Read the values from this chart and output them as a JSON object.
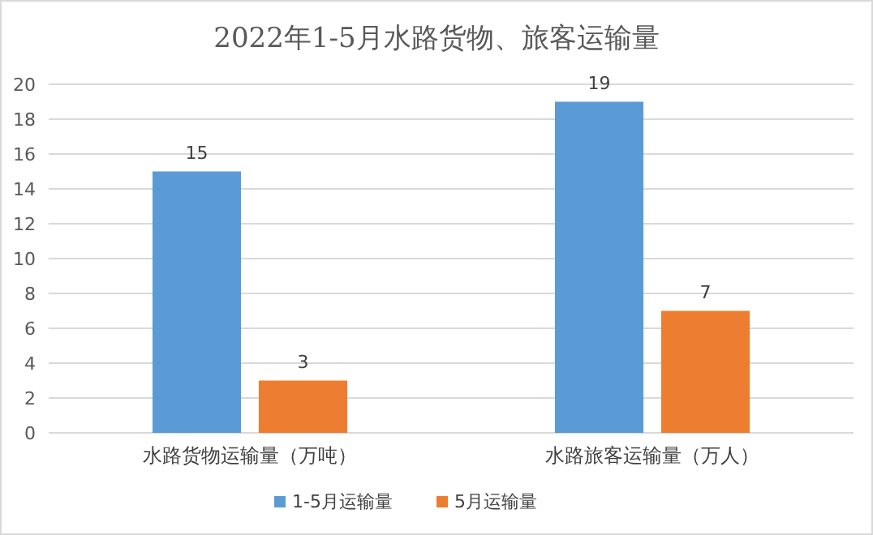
{
  "chart_data": {
    "type": "bar",
    "title": "2022年1-5月水路货物、旅客运输量",
    "categories": [
      "水路货物运输量（万吨）",
      "水路旅客运输量（万人）"
    ],
    "series": [
      {
        "name": "1-5月运输量",
        "color": "#5b9bd5",
        "values": [
          15,
          19
        ]
      },
      {
        "name": "5月运输量",
        "color": "#ed7d31",
        "values": [
          3,
          7
        ]
      }
    ],
    "ylim": [
      0,
      20
    ],
    "yticks": [
      0,
      2,
      4,
      6,
      8,
      10,
      12,
      14,
      16,
      18,
      20
    ],
    "grid": "y",
    "data_labels": true,
    "legend": "bottom"
  }
}
